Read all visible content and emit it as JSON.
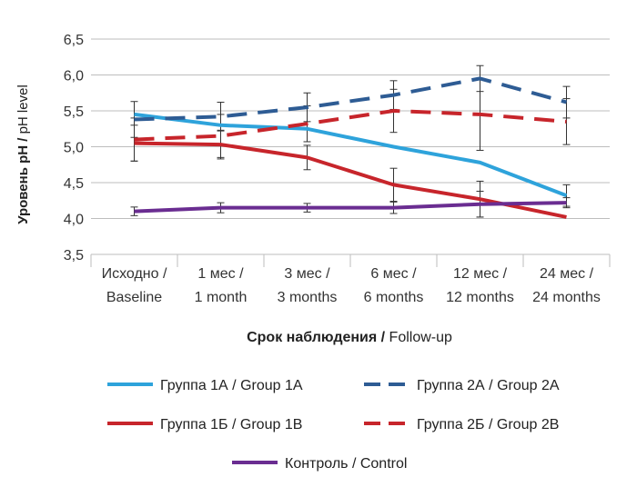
{
  "chart_data": {
    "type": "line",
    "ylabel_primary": "Уровень pH / ",
    "ylabel_secondary": "pH level",
    "xlabel_primary": "Срок наблюдения / ",
    "xlabel_secondary": "Follow-up",
    "ylim": [
      3.5,
      6.5
    ],
    "yticks": [
      "6,5",
      "6,0",
      "5,5",
      "5,0",
      "4,5",
      "4,0",
      "3,5"
    ],
    "yticks_values": [
      6.5,
      6.0,
      5.5,
      5.0,
      4.5,
      4.0,
      3.5
    ],
    "categories": [
      {
        "line1": "Исходно /",
        "line2": "Baseline"
      },
      {
        "line1": "1 мес /",
        "line2": "1 month"
      },
      {
        "line1": "3 мес /",
        "line2": "3 months"
      },
      {
        "line1": "6 мес /",
        "line2": "6 months"
      },
      {
        "line1": "12 мес /",
        "line2": "12 months"
      },
      {
        "line1": "24 мес /",
        "line2": "24 months"
      }
    ],
    "grid": true,
    "legend_position": "bottom",
    "series": [
      {
        "name_primary": "Группа 1А",
        "name_secondary": " / Group 1A",
        "color": "#2EA3DB",
        "dash": "solid",
        "values": [
          5.45,
          5.3,
          5.25,
          5.0,
          4.78,
          4.32
        ],
        "errors": [
          null,
          null,
          null,
          null,
          null,
          0.15
        ]
      },
      {
        "name_primary": "Группа 2А",
        "name_secondary": " / Group 2A",
        "color": "#2E5C94",
        "dash": "dashed",
        "values": [
          5.38,
          5.42,
          5.55,
          5.72,
          5.95,
          5.62
        ],
        "errors": [
          0.25,
          0.2,
          0.2,
          0.2,
          0.18,
          0.22
        ]
      },
      {
        "name_primary": "Группа 1Б",
        "name_secondary": " / Group 1B",
        "color": "#C7252B",
        "dash": "solid",
        "values": [
          5.05,
          5.03,
          4.85,
          4.47,
          4.27,
          4.02
        ],
        "errors": [
          0.25,
          0.2,
          0.17,
          0.23,
          0.25,
          null
        ]
      },
      {
        "name_primary": "Группа 2Б",
        "name_secondary": " / Group 2B",
        "color": "#C7252B",
        "dash": "dashed",
        "values": [
          5.1,
          5.15,
          5.32,
          5.5,
          5.45,
          5.35
        ],
        "errors": [
          0.3,
          0.3,
          0.25,
          0.3,
          0.5,
          0.32
        ]
      },
      {
        "name_primary": "Контроль",
        "name_secondary": " / Control",
        "color": "#6A2D91",
        "dash": "solid",
        "values": [
          4.1,
          4.15,
          4.15,
          4.15,
          4.2,
          4.22
        ],
        "errors": [
          0.06,
          0.07,
          0.06,
          0.08,
          0.18,
          0.07
        ]
      }
    ]
  }
}
